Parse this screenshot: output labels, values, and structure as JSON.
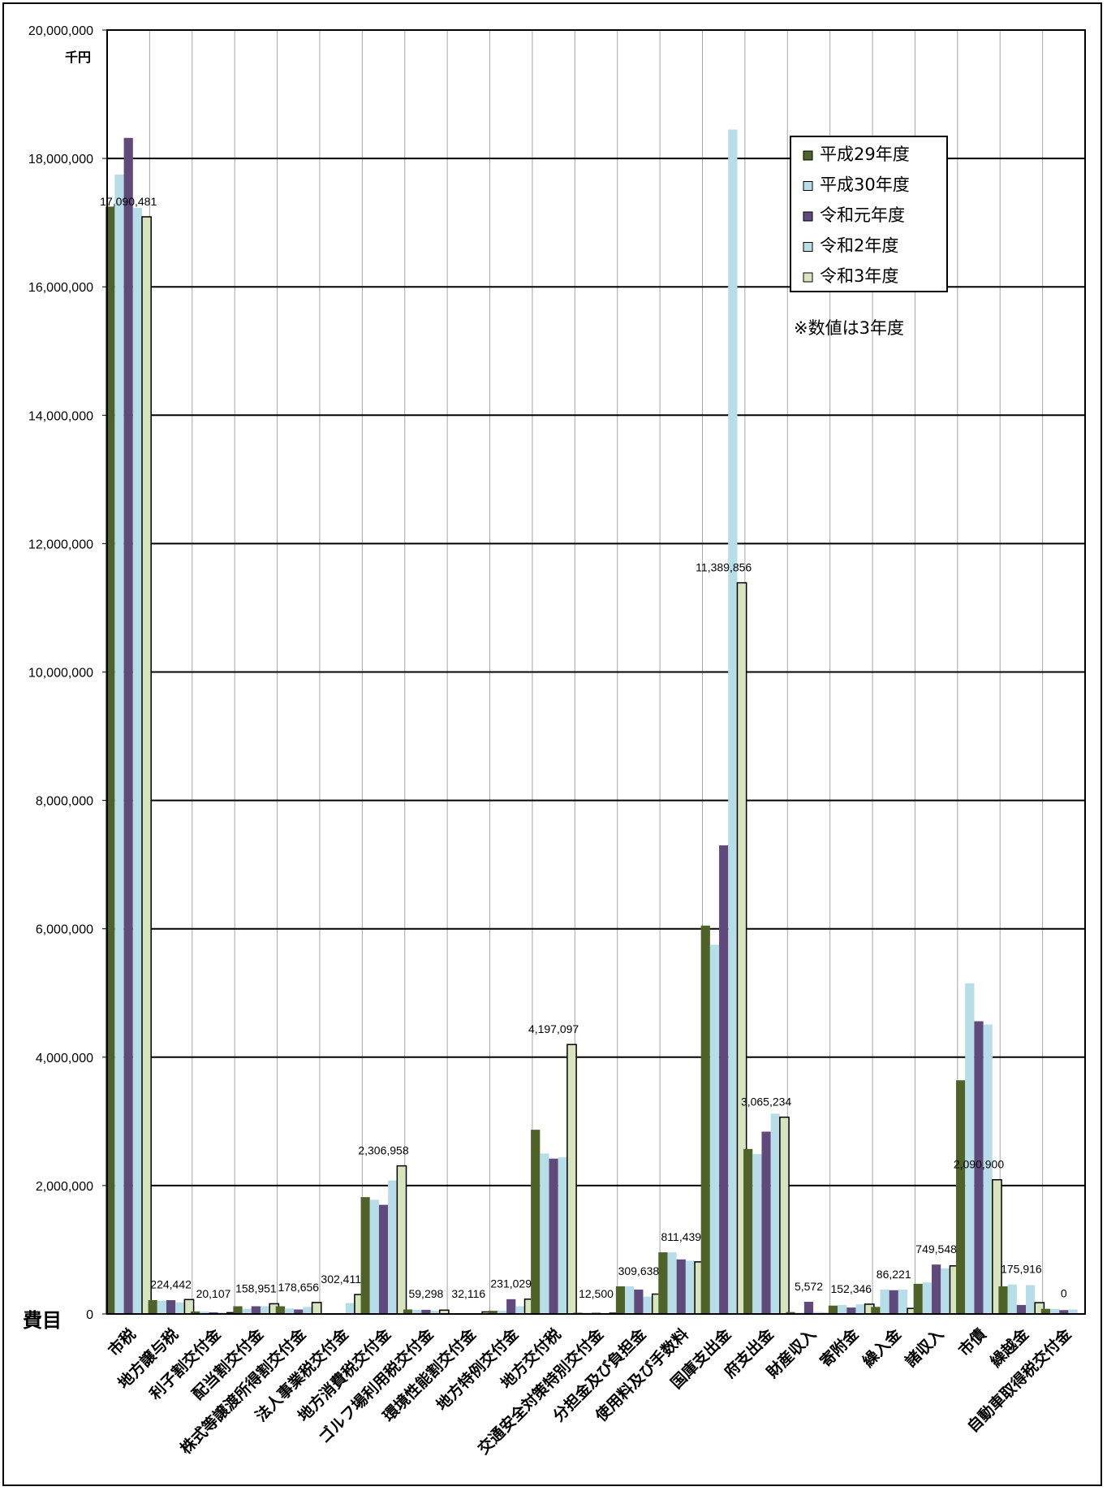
{
  "chart_data": {
    "type": "bar",
    "unit_label": "千円",
    "x_axis_title": "費目",
    "note": "※数値は3年度",
    "ylim": [
      0,
      20000000
    ],
    "ytick_step": 2000000,
    "ytick_labels": [
      "0",
      "2,000,000",
      "4,000,000",
      "6,000,000",
      "8,000,000",
      "10,000,000",
      "12,000,000",
      "14,000,000",
      "16,000,000",
      "18,000,000",
      "20,000,000"
    ],
    "grid": true,
    "legend_position": "top-right",
    "categories": [
      "市税",
      "地方譲与税",
      "利子割交付金",
      "配当割交付金",
      "株式等譲渡所得割交付金",
      "法人事業税交付金",
      "地方消費税交付金",
      "ゴルフ場利用税交付金",
      "環境性能割交付金",
      "地方特例交付金",
      "地方交付税",
      "交通安全対策特別交付金",
      "分担金及び負担金",
      "使用料及び手数料",
      "国庫支出金",
      "府支出金",
      "財産収入",
      "寄附金",
      "繰入金",
      "諸収入",
      "市債",
      "繰越金",
      "自動車取得税交付金"
    ],
    "series": [
      {
        "name": "平成29年度",
        "color": "#4f6228",
        "values": [
          17250000,
          215000,
          40000,
          120000,
          120000,
          0,
          1820000,
          70000,
          0,
          50000,
          2870000,
          20000,
          430000,
          960000,
          6050000,
          2570000,
          30000,
          130000,
          110000,
          470000,
          3640000,
          430000,
          80000
        ]
      },
      {
        "name": "平成30年度",
        "color": "#b7dde8",
        "values": [
          17750000,
          205000,
          38000,
          80000,
          85000,
          0,
          1780000,
          65000,
          0,
          50000,
          2500000,
          20000,
          430000,
          960000,
          5750000,
          2490000,
          20000,
          140000,
          380000,
          490000,
          5150000,
          460000,
          80000
        ]
      },
      {
        "name": "令和元年度",
        "color": "#604a7b",
        "values": [
          18320000,
          215000,
          25000,
          120000,
          70000,
          0,
          1700000,
          65000,
          0,
          230000,
          2420000,
          20000,
          380000,
          850000,
          7300000,
          2840000,
          190000,
          100000,
          370000,
          770000,
          4560000,
          140000,
          60000
        ]
      },
      {
        "name": "令和2年度",
        "color": "#b7dde8",
        "values": [
          17230000,
          180000,
          22000,
          120000,
          110000,
          170000,
          2080000,
          50000,
          10000,
          120000,
          2440000,
          15000,
          270000,
          830000,
          18450000,
          3120000,
          30000,
          150000,
          380000,
          710000,
          4510000,
          450000,
          70000
        ]
      },
      {
        "name": "令和3年度",
        "color": "#d7e4bd",
        "values": [
          17090481,
          224442,
          20107,
          158951,
          178656,
          302411,
          2306958,
          59298,
          32116,
          231029,
          4197097,
          12500,
          309638,
          811439,
          11389856,
          3065234,
          5572,
          152346,
          86221,
          749548,
          2090900,
          175916,
          0
        ]
      }
    ],
    "data_labels": [
      "17,090,481",
      "224,442",
      "20,107",
      "158,951",
      "178,656",
      "302,411",
      "2,306,958",
      "59,298",
      "32,116",
      "231,029",
      "4,197,097",
      "12,500",
      "309,638",
      "811,439",
      "11,389,856",
      "3,065,234",
      "5,572",
      "152,346",
      "86,221",
      "749,548",
      "2,090,900",
      "175,916",
      "0"
    ]
  }
}
